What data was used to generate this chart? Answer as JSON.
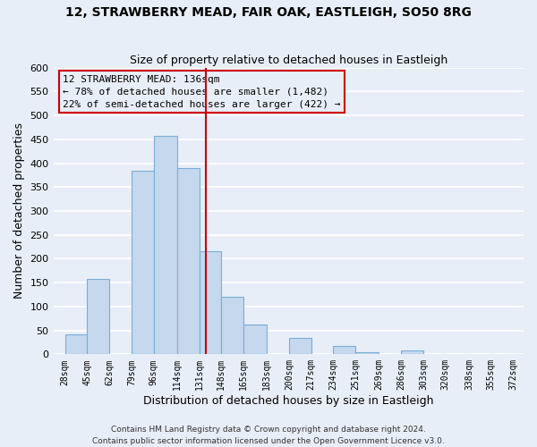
{
  "title": "12, STRAWBERRY MEAD, FAIR OAK, EASTLEIGH, SO50 8RG",
  "subtitle": "Size of property relative to detached houses in Eastleigh",
  "xlabel": "Distribution of detached houses by size in Eastleigh",
  "ylabel": "Number of detached properties",
  "bin_edges": [
    28,
    45,
    62,
    79,
    96,
    114,
    131,
    148,
    165,
    183,
    200,
    217,
    234,
    251,
    269,
    286,
    303,
    320,
    338,
    355,
    372
  ],
  "bar_heights": [
    42,
    158,
    0,
    385,
    458,
    390,
    215,
    120,
    62,
    0,
    35,
    0,
    18,
    5,
    0,
    8,
    0,
    0,
    0,
    0
  ],
  "tick_labels": [
    "28sqm",
    "45sqm",
    "62sqm",
    "79sqm",
    "96sqm",
    "114sqm",
    "131sqm",
    "148sqm",
    "165sqm",
    "183sqm",
    "200sqm",
    "217sqm",
    "234sqm",
    "251sqm",
    "269sqm",
    "286sqm",
    "303sqm",
    "320sqm",
    "338sqm",
    "355sqm",
    "372sqm"
  ],
  "tick_positions": [
    28,
    45,
    62,
    79,
    96,
    114,
    131,
    148,
    165,
    183,
    200,
    217,
    234,
    251,
    269,
    286,
    303,
    320,
    338,
    355,
    372
  ],
  "bar_color": "#c5d8ee",
  "bar_edge_color": "#7aafd4",
  "vline_x": 136,
  "vline_color": "#cc0000",
  "ylim": [
    0,
    600
  ],
  "xlim": [
    19,
    380
  ],
  "yticks": [
    0,
    50,
    100,
    150,
    200,
    250,
    300,
    350,
    400,
    450,
    500,
    550,
    600
  ],
  "annotation_title": "12 STRAWBERRY MEAD: 136sqm",
  "annotation_line1": "← 78% of detached houses are smaller (1,482)",
  "annotation_line2": "22% of semi-detached houses are larger (422) →",
  "footnote1": "Contains HM Land Registry data © Crown copyright and database right 2024.",
  "footnote2": "Contains public sector information licensed under the Open Government Licence v3.0.",
  "background_color": "#e8eef8",
  "grid_color": "#ffffff",
  "title_fontsize": 10,
  "subtitle_fontsize": 9,
  "axis_label_fontsize": 9,
  "tick_fontsize": 7,
  "footnote_fontsize": 6.5
}
